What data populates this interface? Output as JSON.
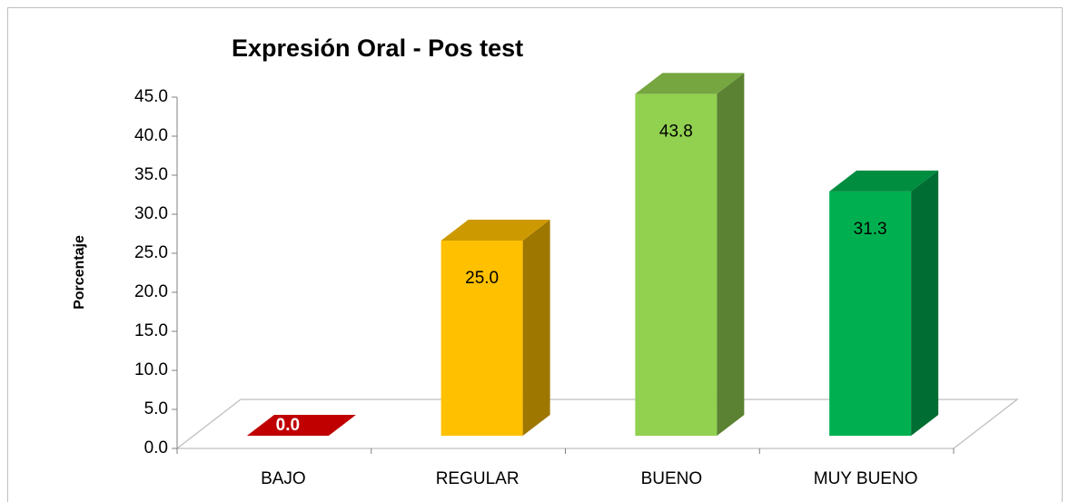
{
  "chart_data": {
    "type": "bar3d",
    "title": "Expresión Oral - Pos test",
    "y_label": "Porcentaje",
    "categories": [
      "BAJO",
      "REGULAR",
      "BUENO",
      "MUY BUENO"
    ],
    "values": [
      0,
      25,
      43.8,
      31.3
    ],
    "value_labels": [
      "0.0",
      "25.0",
      "43.8",
      "31.3"
    ],
    "colors": [
      "#c00000",
      "#ffc000",
      "#92d050",
      "#00b050"
    ],
    "ylim": [
      0,
      45
    ],
    "yticks": [
      {
        "value": 0,
        "label": "0.0"
      },
      {
        "value": 5,
        "label": "5.0"
      },
      {
        "value": 10,
        "label": "10.0"
      },
      {
        "value": 15,
        "label": "15.0"
      },
      {
        "value": 20,
        "label": "20.0"
      },
      {
        "value": 25,
        "label": "25.0"
      },
      {
        "value": 30,
        "label": "30.0"
      },
      {
        "value": 35,
        "label": "35.0"
      },
      {
        "value": 40,
        "label": "40.0"
      },
      {
        "value": 45,
        "label": "45.0"
      }
    ]
  }
}
